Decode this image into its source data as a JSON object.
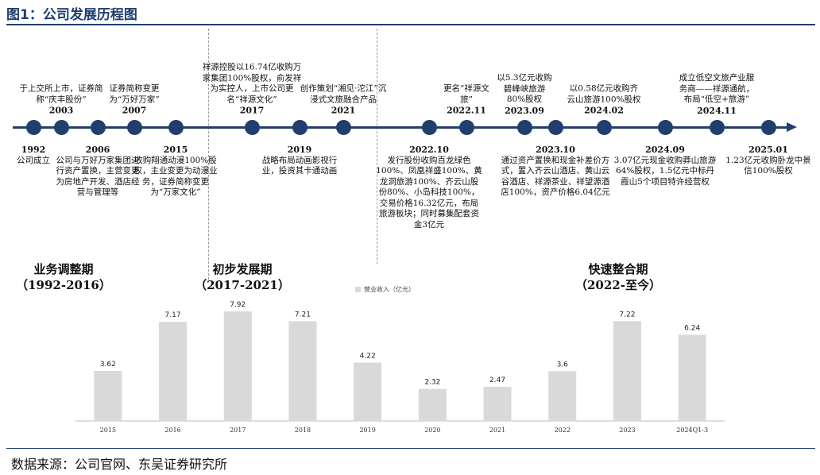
{
  "title": "图1：公司发展历程图",
  "source": "数据来源：公司官网、东吴证券研究所",
  "colors": {
    "accent": "#223e6d",
    "bar": "#d9d9d9"
  },
  "phases": [
    {
      "name": "业务调整期",
      "range": "（1992-2016）"
    },
    {
      "name": "初步发展期",
      "range": "（2017-2021）"
    },
    {
      "name": "快速整合期",
      "range": "（2022-至今）"
    }
  ],
  "timeline": [
    {
      "date": "1992",
      "text": "公司成立",
      "pos": "below"
    },
    {
      "date": "2003",
      "text": "于上交所上市，证券简称“庆丰股份”",
      "pos": "above"
    },
    {
      "date": "2006",
      "text": "公司与万好万家集团进行资产置换，主营变更为房地产开发、酒店经营与管理等",
      "pos": "below"
    },
    {
      "date": "2007",
      "text": "证券简称变更为“万好万家”",
      "pos": "above"
    },
    {
      "date": "2015",
      "text": "收购翔通动漫100%股权，主业变更为动漫业务，证券简称变更为“万家文化”",
      "pos": "below"
    },
    {
      "date": "2017",
      "text": "祥源控股以16.74亿收购万家集团100%股权，俞发祥为实控人，上市公司更名“祥源文化”",
      "pos": "above"
    },
    {
      "date": "2019",
      "text": "战略布局动画影视行业，投资其卡通动画",
      "pos": "below"
    },
    {
      "date": "2021",
      "text": "创作策划“湘见·沱江”沉浸式文旅融合产品",
      "pos": "above"
    },
    {
      "date": "2022.10",
      "text": "发行股份收购百龙绿色100%、凤凰祥盛100%、黄龙洞旅游100%、齐云山股份80%、小岛科技100%，交易价格16.32亿元，布局旅游板块；同时募集配套资金3亿元",
      "pos": "below"
    },
    {
      "date": "2022.11",
      "text": "更名“祥源文旅”",
      "pos": "above"
    },
    {
      "date": "2023.09",
      "text": "以5.3亿元收购碧峰峡旅游80%股权",
      "pos": "above"
    },
    {
      "date": "2023.10",
      "text": "通过资产置换和现金补差价方式，置入齐云山酒店、黄山云谷酒店、祥源茶业、祥望源酒店100%，资产价格6.04亿元",
      "pos": "below"
    },
    {
      "date": "2024.02",
      "text": "以0.58亿元收购齐云山旅游100%股权",
      "pos": "above"
    },
    {
      "date": "2024.09",
      "text": "3.07亿元现金收购莽山旅游64%股权，1.5亿元中标丹霞山5个项目特许经营权",
      "pos": "below"
    },
    {
      "date": "2024.11",
      "text": "成立低空文旅产业服务商——祥源通航，布局“低空+旅游”",
      "pos": "above"
    },
    {
      "date": "2025.01",
      "text": "1.23亿元收购卧龙中景信100%股权",
      "pos": "below"
    }
  ],
  "chart_data": {
    "type": "bar",
    "legend": "营业收入（亿元）",
    "categories": [
      "2015",
      "2016",
      "2017",
      "2018",
      "2019",
      "2020",
      "2021",
      "2022",
      "2023",
      "2024Q1-3"
    ],
    "series": [
      {
        "name": "营业收入（亿元）",
        "values": [
          3.62,
          7.17,
          7.92,
          7.21,
          4.22,
          2.32,
          2.47,
          3.6,
          7.22,
          6.24
        ]
      }
    ],
    "ylim": [
      0,
      8.5
    ],
    "grid": false
  }
}
